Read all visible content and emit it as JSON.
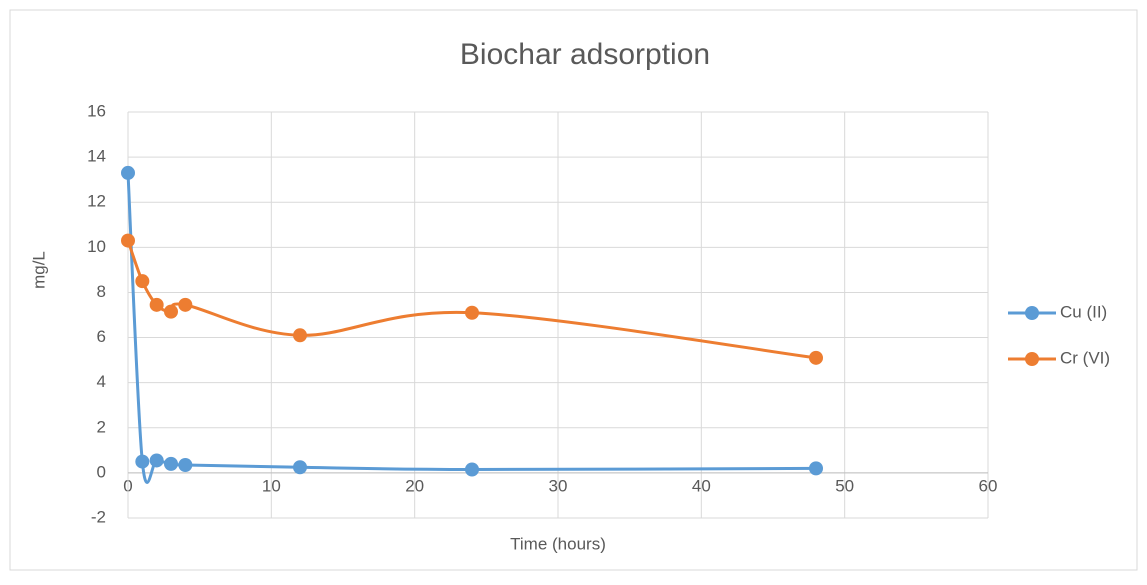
{
  "chart_data": {
    "type": "scatter_smooth",
    "title": "Biochar adsorption",
    "xlabel": "Time (hours)",
    "ylabel": "mg/L",
    "x": [
      0,
      1,
      2,
      3,
      4,
      12,
      24,
      48
    ],
    "series": [
      {
        "name": "Cu (II)",
        "color": "#5b9bd5",
        "values": [
          13.3,
          0.5,
          0.55,
          0.4,
          0.35,
          0.25,
          0.15,
          0.2
        ]
      },
      {
        "name": "Cr (VI)",
        "color": "#ed7d31",
        "values": [
          10.3,
          8.5,
          7.45,
          7.15,
          7.45,
          6.1,
          7.1,
          5.1
        ]
      }
    ],
    "xlim": [
      0,
      60
    ],
    "xticks": [
      0,
      10,
      20,
      30,
      40,
      50,
      60
    ],
    "ylim": [
      -2,
      16
    ],
    "yticks": [
      -2,
      0,
      2,
      4,
      6,
      8,
      10,
      12,
      14,
      16
    ],
    "grid": true,
    "legend": "right"
  }
}
